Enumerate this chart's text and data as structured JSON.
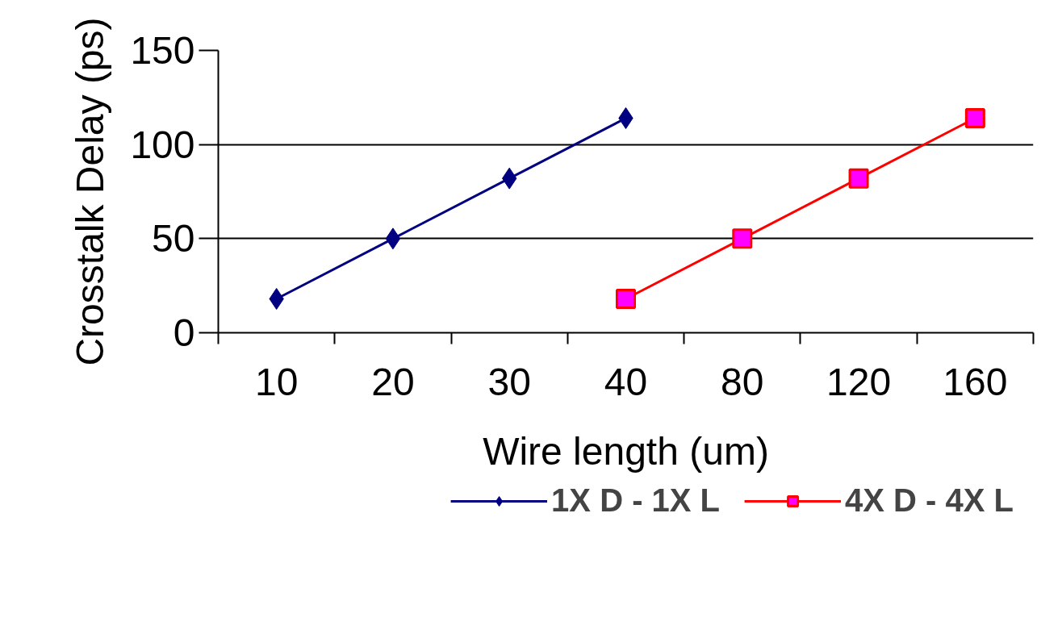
{
  "chart_data": {
    "type": "line",
    "xlabel": "Wire length (um)",
    "ylabel": "Crosstalk Delay (ps)",
    "categories": [
      "10",
      "20",
      "30",
      "40",
      "80",
      "120",
      "160"
    ],
    "series": [
      {
        "name": "1X D - 1X L",
        "color": "#000080",
        "marker": "diamond",
        "values": [
          18,
          50,
          82,
          114,
          null,
          null,
          null
        ]
      },
      {
        "name": "4X D - 4X L",
        "color": "#ff0000",
        "marker": "square",
        "values": [
          null,
          null,
          null,
          18,
          50,
          82,
          114
        ]
      }
    ],
    "ylim": [
      0,
      150
    ],
    "yticks": [
      0,
      50,
      100,
      150
    ],
    "grid": "y",
    "legend": "bottom",
    "line_style": "solid"
  }
}
